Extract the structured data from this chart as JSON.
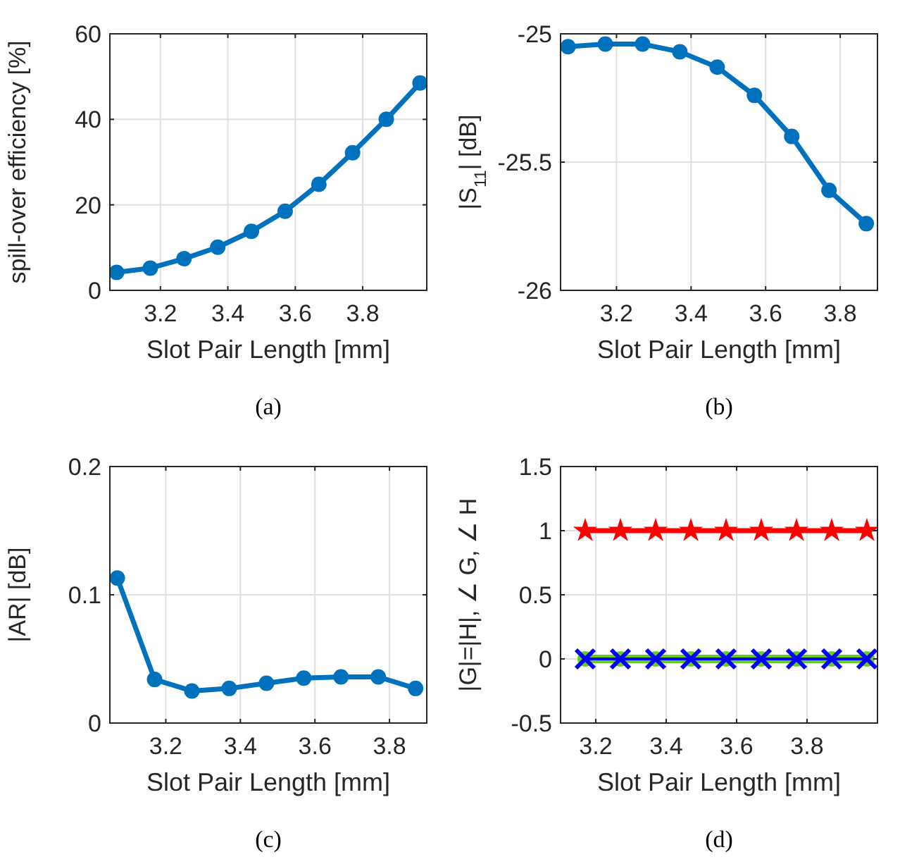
{
  "chart_data": [
    {
      "type": "line",
      "xlabel": "Slot Pair Length [mm]",
      "ylabel": "spill-over efficiency [%]",
      "annotations": [
        "(a)"
      ],
      "xlim": [
        3.05,
        3.99
      ],
      "xticks": [
        3.2,
        3.4,
        3.6,
        3.8
      ],
      "ylim": [
        0,
        60
      ],
      "yticks": [
        0,
        20,
        40,
        60
      ],
      "grid": true,
      "marker": "circle",
      "series": [
        {
          "color": "#0072bd",
          "x": [
            3.07,
            3.17,
            3.27,
            3.37,
            3.47,
            3.57,
            3.67,
            3.77,
            3.87,
            3.97
          ],
          "values": [
            4.2,
            5.2,
            7.4,
            10.1,
            13.8,
            18.5,
            24.8,
            32.2,
            40.0,
            48.5
          ]
        }
      ]
    },
    {
      "type": "line",
      "xlabel": "Slot Pair Length [mm]",
      "ylabel": "|S$_{11}$| [dB]",
      "annotations": [
        "(b)"
      ],
      "xlim": [
        3.05,
        3.9
      ],
      "xticks": [
        3.2,
        3.4,
        3.6,
        3.8
      ],
      "ylim": [
        -26,
        -25
      ],
      "yticks": [
        -26,
        -25.5,
        -25
      ],
      "grid": true,
      "marker": "circle",
      "series": [
        {
          "color": "#0072bd",
          "x": [
            3.07,
            3.17,
            3.27,
            3.37,
            3.47,
            3.57,
            3.67,
            3.77,
            3.87
          ],
          "values": [
            -25.05,
            -25.04,
            -25.04,
            -25.07,
            -25.13,
            -25.24,
            -25.4,
            -25.61,
            -25.74
          ]
        }
      ]
    },
    {
      "type": "line",
      "xlabel": "Slot Pair Length [mm]",
      "ylabel": "|AR| [dB]",
      "annotations": [
        "(c)"
      ],
      "xlim": [
        3.05,
        3.9
      ],
      "xticks": [
        3.2,
        3.4,
        3.6,
        3.8
      ],
      "ylim": [
        0,
        0.2
      ],
      "yticks": [
        0,
        0.1,
        0.2
      ],
      "grid": true,
      "marker": "circle",
      "series": [
        {
          "color": "#0072bd",
          "x": [
            3.07,
            3.17,
            3.27,
            3.37,
            3.47,
            3.57,
            3.67,
            3.77,
            3.87
          ],
          "values": [
            0.113,
            0.034,
            0.025,
            0.027,
            0.031,
            0.035,
            0.036,
            0.036,
            0.027
          ]
        }
      ]
    },
    {
      "type": "line",
      "xlabel": "Slot Pair Length [mm]",
      "ylabel": "|G|=|H|, ∠ G, ∠ H",
      "annotations": [
        "(d)"
      ],
      "xlim": [
        3.1,
        4.0
      ],
      "xticks": [
        3.2,
        3.4,
        3.6,
        3.8
      ],
      "ylim": [
        -0.5,
        1.5
      ],
      "yticks": [
        -0.5,
        0,
        0.5,
        1,
        1.5
      ],
      "grid": true,
      "series": [
        {
          "color": "#ff0000",
          "marker": "star",
          "x": [
            3.17,
            3.27,
            3.37,
            3.47,
            3.57,
            3.67,
            3.77,
            3.87,
            3.97
          ],
          "values": [
            1,
            1,
            1,
            1,
            1,
            1,
            1,
            1,
            1
          ]
        },
        {
          "color": "#66cc22",
          "marker": "circle",
          "x": [
            3.17,
            3.27,
            3.37,
            3.47,
            3.57,
            3.67,
            3.77,
            3.87,
            3.97
          ],
          "values": [
            0,
            0,
            0,
            0,
            0,
            0,
            0,
            0,
            0
          ]
        },
        {
          "color": "#0000ff",
          "marker": "cross",
          "x": [
            3.17,
            3.27,
            3.37,
            3.47,
            3.57,
            3.67,
            3.77,
            3.87,
            3.97
          ],
          "values": [
            0,
            0,
            0,
            0,
            0,
            0,
            0,
            0,
            0
          ]
        }
      ]
    }
  ]
}
